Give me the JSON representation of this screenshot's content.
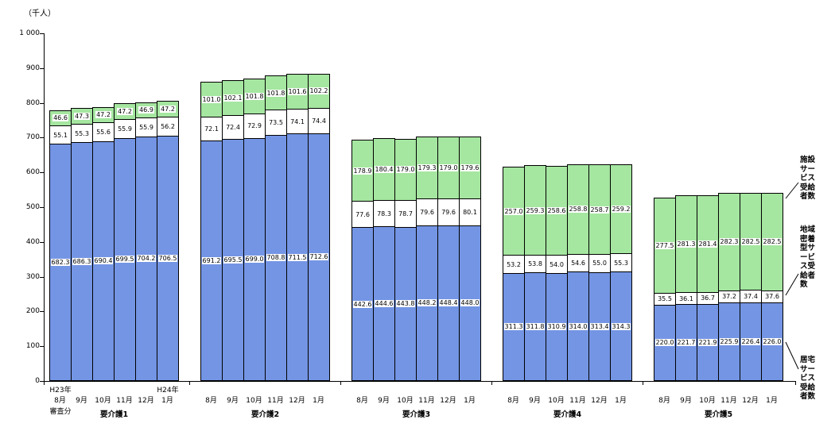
{
  "title_unit": "（千人）",
  "y_axis_ticks": [
    "1 000",
    "900",
    "800",
    "700",
    "600",
    "500",
    "400",
    "300",
    "200",
    "100",
    "0"
  ],
  "x_axis": {
    "era_start": "H23年",
    "era_new": "H24年",
    "note": "審査分",
    "months": [
      "8月",
      "9月",
      "10月",
      "11月",
      "12月",
      "1月"
    ]
  },
  "annotations": {
    "facility": "施設サービス受給者数",
    "community": "地域密着型サービス受給者数",
    "home": "居宅サービス受給者数"
  },
  "chart_data": {
    "type": "bar",
    "stacked": true,
    "title": "",
    "ylabel": "千人",
    "ylim": [
      0,
      1000
    ],
    "grid": false,
    "categories": [
      "要介護1",
      "要介護2",
      "要介護3",
      "要介護4",
      "要介護5"
    ],
    "months": [
      "8月",
      "9月",
      "10月",
      "11月",
      "12月",
      "1月"
    ],
    "series_bottom_to_top": [
      "居宅サービス受給者数",
      "地域密着型サービス受給者数",
      "施設サービス受給者数"
    ],
    "colors": {
      "home": "#7495E4",
      "community": "#FFFFFF",
      "facility": "#A5E6A0"
    },
    "groups": [
      {
        "category": "要介護1",
        "home": [
          682.3,
          686.3,
          690.4,
          699.5,
          704.2,
          706.5
        ],
        "community": [
          55.1,
          55.3,
          55.6,
          55.9,
          55.9,
          56.2
        ],
        "facility": [
          46.6,
          47.3,
          47.2,
          47.2,
          46.9,
          47.2
        ]
      },
      {
        "category": "要介護2",
        "home": [
          691.2,
          695.5,
          699.0,
          708.8,
          711.5,
          712.6
        ],
        "community": [
          72.1,
          72.4,
          72.9,
          73.5,
          74.1,
          74.4
        ],
        "facility": [
          101.0,
          102.1,
          101.8,
          101.8,
          101.6,
          102.2
        ]
      },
      {
        "category": "要介護3",
        "home": [
          442.6,
          444.6,
          443.8,
          448.2,
          448.4,
          448.0
        ],
        "community": [
          77.6,
          78.3,
          78.7,
          79.6,
          79.6,
          80.1
        ],
        "facility": [
          178.9,
          180.4,
          179.0,
          179.3,
          179.0,
          179.6
        ]
      },
      {
        "category": "要介護4",
        "home": [
          311.3,
          311.8,
          310.9,
          314.0,
          313.4,
          314.3
        ],
        "community": [
          53.2,
          53.8,
          54.0,
          54.6,
          55.0,
          55.3
        ],
        "facility": [
          257.0,
          259.3,
          258.6,
          258.8,
          258.7,
          259.2
        ]
      },
      {
        "category": "要介護5",
        "home": [
          220.0,
          221.7,
          221.9,
          225.9,
          226.4,
          226.0
        ],
        "community": [
          35.5,
          36.1,
          36.7,
          37.2,
          37.4,
          37.6
        ],
        "facility": [
          277.5,
          281.3,
          281.4,
          282.3,
          282.5,
          282.5
        ]
      }
    ]
  }
}
